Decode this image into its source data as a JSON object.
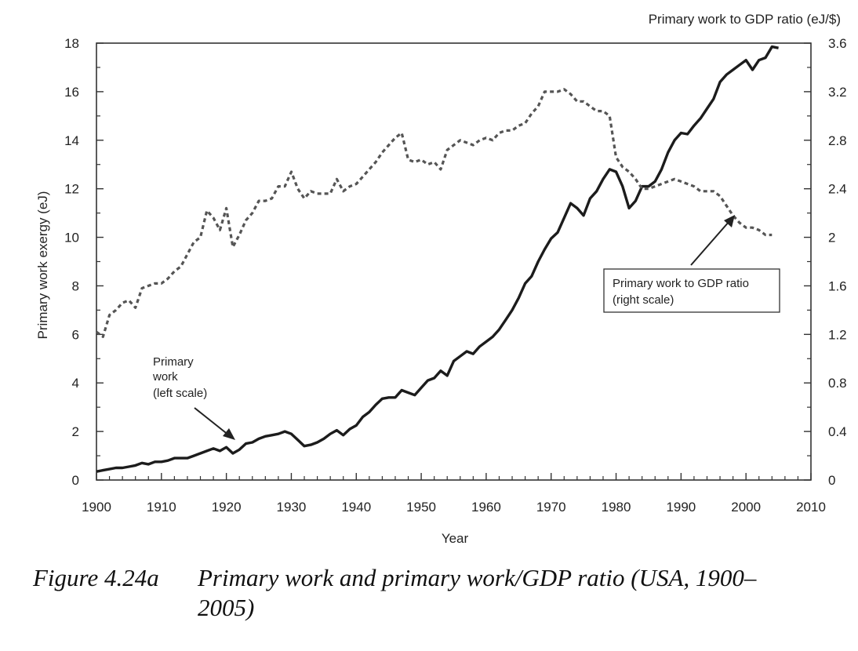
{
  "chart_data": {
    "type": "line",
    "xlabel": "Year",
    "ylabel_left": "Primary work exergy (eJ)",
    "ylabel_right": "Primary work to GDP ratio (eJ/$)",
    "xlim": [
      1900,
      2010
    ],
    "ylim_left": [
      0,
      18
    ],
    "ylim_right": [
      0,
      3.6
    ],
    "x_ticks": [
      1900,
      1910,
      1920,
      1930,
      1940,
      1950,
      1960,
      1970,
      1980,
      1990,
      2000,
      2010
    ],
    "y_ticks_left": [
      0,
      2,
      4,
      6,
      8,
      10,
      12,
      14,
      16,
      18
    ],
    "y_ticks_right": [
      "0",
      "0.4",
      "0.8",
      "1.2",
      "1.6",
      "2",
      "2.4",
      "2.8",
      "3.2",
      "3.6"
    ],
    "series": [
      {
        "name": "Primary work (left scale)",
        "axis": "left",
        "style": "solid",
        "x": [
          1900,
          1901,
          1902,
          1903,
          1904,
          1905,
          1906,
          1907,
          1908,
          1909,
          1910,
          1911,
          1912,
          1913,
          1914,
          1915,
          1916,
          1917,
          1918,
          1919,
          1920,
          1921,
          1922,
          1923,
          1924,
          1925,
          1926,
          1927,
          1928,
          1929,
          1930,
          1931,
          1932,
          1933,
          1934,
          1935,
          1936,
          1937,
          1938,
          1939,
          1940,
          1941,
          1942,
          1943,
          1944,
          1945,
          1946,
          1947,
          1948,
          1949,
          1950,
          1951,
          1952,
          1953,
          1954,
          1955,
          1956,
          1957,
          1958,
          1959,
          1960,
          1961,
          1962,
          1963,
          1964,
          1965,
          1966,
          1967,
          1968,
          1969,
          1970,
          1971,
          1972,
          1973,
          1974,
          1975,
          1976,
          1977,
          1978,
          1979,
          1980,
          1981,
          1982,
          1983,
          1984,
          1985,
          1986,
          1987,
          1988,
          1989,
          1990,
          1991,
          1992,
          1993,
          1994,
          1995,
          1996,
          1997,
          1998,
          1999,
          2000,
          2001,
          2002,
          2003,
          2004,
          2005
        ],
        "values": [
          0.35,
          0.4,
          0.45,
          0.5,
          0.5,
          0.55,
          0.6,
          0.7,
          0.65,
          0.75,
          0.75,
          0.8,
          0.9,
          0.9,
          0.9,
          1.0,
          1.1,
          1.2,
          1.3,
          1.2,
          1.35,
          1.1,
          1.25,
          1.5,
          1.55,
          1.7,
          1.8,
          1.85,
          1.9,
          2.0,
          1.9,
          1.65,
          1.4,
          1.45,
          1.55,
          1.7,
          1.9,
          2.05,
          1.85,
          2.1,
          2.25,
          2.6,
          2.8,
          3.1,
          3.35,
          3.4,
          3.4,
          3.7,
          3.6,
          3.5,
          3.8,
          4.1,
          4.2,
          4.5,
          4.3,
          4.9,
          5.1,
          5.3,
          5.2,
          5.5,
          5.7,
          5.9,
          6.2,
          6.6,
          7.0,
          7.5,
          8.1,
          8.4,
          9.0,
          9.5,
          9.95,
          10.2,
          10.8,
          11.4,
          11.2,
          10.9,
          11.6,
          11.9,
          12.4,
          12.8,
          12.7,
          12.1,
          11.2,
          11.5,
          12.1,
          12.1,
          12.3,
          12.8,
          13.5,
          14.0,
          14.3,
          14.25,
          14.6,
          14.9,
          15.3,
          15.7,
          16.4,
          16.7,
          16.9,
          17.1,
          17.3,
          16.9,
          17.3,
          17.4,
          17.85,
          17.8
        ]
      },
      {
        "name": "Primary work to GDP ratio (right scale)",
        "axis": "right",
        "style": "dashed",
        "x": [
          1900,
          1901,
          1902,
          1903,
          1904,
          1905,
          1906,
          1907,
          1908,
          1909,
          1910,
          1911,
          1912,
          1913,
          1914,
          1915,
          1916,
          1917,
          1918,
          1919,
          1920,
          1921,
          1922,
          1923,
          1924,
          1925,
          1926,
          1927,
          1928,
          1929,
          1930,
          1931,
          1932,
          1933,
          1934,
          1935,
          1936,
          1937,
          1938,
          1939,
          1940,
          1941,
          1942,
          1943,
          1944,
          1945,
          1946,
          1947,
          1948,
          1949,
          1950,
          1951,
          1952,
          1953,
          1954,
          1955,
          1956,
          1957,
          1958,
          1959,
          1960,
          1961,
          1962,
          1963,
          1964,
          1965,
          1966,
          1967,
          1968,
          1969,
          1970,
          1971,
          1972,
          1973,
          1974,
          1975,
          1976,
          1977,
          1978,
          1979,
          1980,
          1981,
          1982,
          1983,
          1984,
          1985,
          1986,
          1987,
          1988,
          1989,
          1990,
          1991,
          1992,
          1993,
          1994,
          1995,
          1996,
          1997,
          1998,
          1999,
          2000,
          2001,
          2002,
          2003,
          2004
        ],
        "values": [
          1.22,
          1.18,
          1.36,
          1.4,
          1.46,
          1.48,
          1.42,
          1.58,
          1.6,
          1.62,
          1.62,
          1.66,
          1.72,
          1.76,
          1.86,
          1.96,
          2.0,
          2.22,
          2.16,
          2.06,
          2.24,
          1.92,
          2.02,
          2.14,
          2.2,
          2.3,
          2.3,
          2.32,
          2.42,
          2.42,
          2.54,
          2.4,
          2.32,
          2.38,
          2.36,
          2.36,
          2.36,
          2.48,
          2.38,
          2.42,
          2.44,
          2.5,
          2.56,
          2.62,
          2.7,
          2.76,
          2.82,
          2.86,
          2.64,
          2.62,
          2.64,
          2.6,
          2.62,
          2.56,
          2.72,
          2.76,
          2.8,
          2.78,
          2.76,
          2.8,
          2.82,
          2.8,
          2.86,
          2.88,
          2.88,
          2.92,
          2.94,
          3.02,
          3.08,
          3.2,
          3.2,
          3.2,
          3.22,
          3.18,
          3.12,
          3.12,
          3.08,
          3.04,
          3.04,
          3.0,
          2.66,
          2.58,
          2.54,
          2.48,
          2.4,
          2.4,
          2.42,
          2.44,
          2.46,
          2.48,
          2.46,
          2.44,
          2.42,
          2.38,
          2.38,
          2.38,
          2.34,
          2.26,
          2.18,
          2.12,
          2.08,
          2.08,
          2.06,
          2.02,
          2.02
        ]
      }
    ],
    "annotations": [
      {
        "lines": [
          "Primary",
          "work",
          "(left scale)"
        ]
      },
      {
        "lines": [
          "Primary work to GDP ratio",
          "(right scale)"
        ]
      }
    ]
  },
  "caption": {
    "number": "Figure 4.24a",
    "text": "Primary work and primary work/GDP ratio (USA, 1900–2005)"
  }
}
